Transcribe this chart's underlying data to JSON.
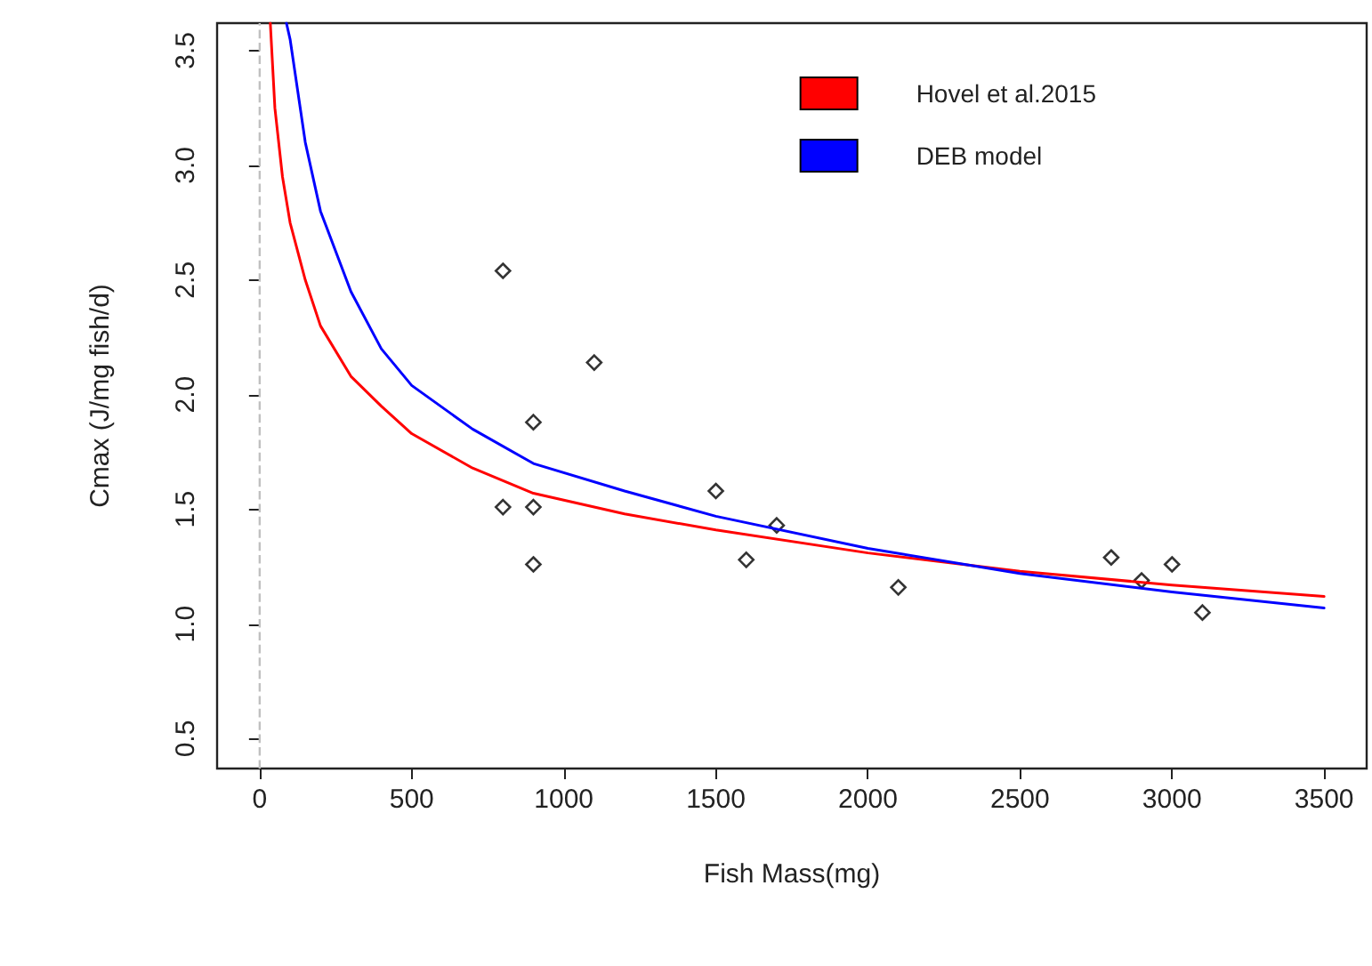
{
  "chart_data": {
    "type": "scatter",
    "xlabel": "Fish Mass(mg)",
    "ylabel": "Cmax (J/mg fish/d)",
    "xlim": [
      -140,
      3640
    ],
    "ylim": [
      0.37,
      3.62
    ],
    "xticks": [
      0,
      500,
      1000,
      1500,
      2000,
      2500,
      3000,
      3500
    ],
    "yticks": [
      0.5,
      {
        "value": 1,
        "label": "1.0"
      },
      1.5,
      {
        "value": 2,
        "label": "2.0"
      },
      2.5,
      {
        "value": 3,
        "label": "3.0"
      },
      3.5
    ],
    "grid": false,
    "legend": "top right",
    "ref_lines": [
      {
        "axis": "x",
        "value": 0,
        "color": "#c0c0c0",
        "line_style": "dashed"
      }
    ],
    "series": [
      {
        "type": "scatter",
        "marker": "diamond",
        "color": "#000000",
        "x": [
          800,
          800,
          900,
          900,
          900,
          1100,
          1500,
          1600,
          1700,
          2100,
          2800,
          2900,
          3000,
          3100
        ],
        "values": [
          2.54,
          1.51,
          1.88,
          1.51,
          1.26,
          2.14,
          1.58,
          1.28,
          1.43,
          1.16,
          1.29,
          1.19,
          1.26,
          1.05
        ]
      },
      {
        "type": "line",
        "marker": "none",
        "name": "Hovel et al.2015",
        "color": "#ff0000",
        "x": [
          35,
          50,
          75,
          100,
          150,
          200,
          300,
          400,
          500,
          700,
          900,
          1200,
          1500,
          2000,
          2500,
          3000,
          3500
        ],
        "values": [
          3.62,
          3.25,
          2.95,
          2.75,
          2.5,
          2.3,
          2.08,
          1.95,
          1.83,
          1.68,
          1.57,
          1.48,
          1.41,
          1.31,
          1.23,
          1.17,
          1.12
        ]
      },
      {
        "type": "line",
        "marker": "none",
        "name": "DEB model",
        "color": "#0000ff",
        "x": [
          88,
          100,
          150,
          200,
          300,
          400,
          500,
          700,
          900,
          1200,
          1500,
          2000,
          2500,
          3000,
          3500
        ],
        "values": [
          3.62,
          3.55,
          3.1,
          2.8,
          2.45,
          2.2,
          2.04,
          1.85,
          1.7,
          1.58,
          1.47,
          1.33,
          1.22,
          1.14,
          1.07
        ]
      }
    ]
  }
}
